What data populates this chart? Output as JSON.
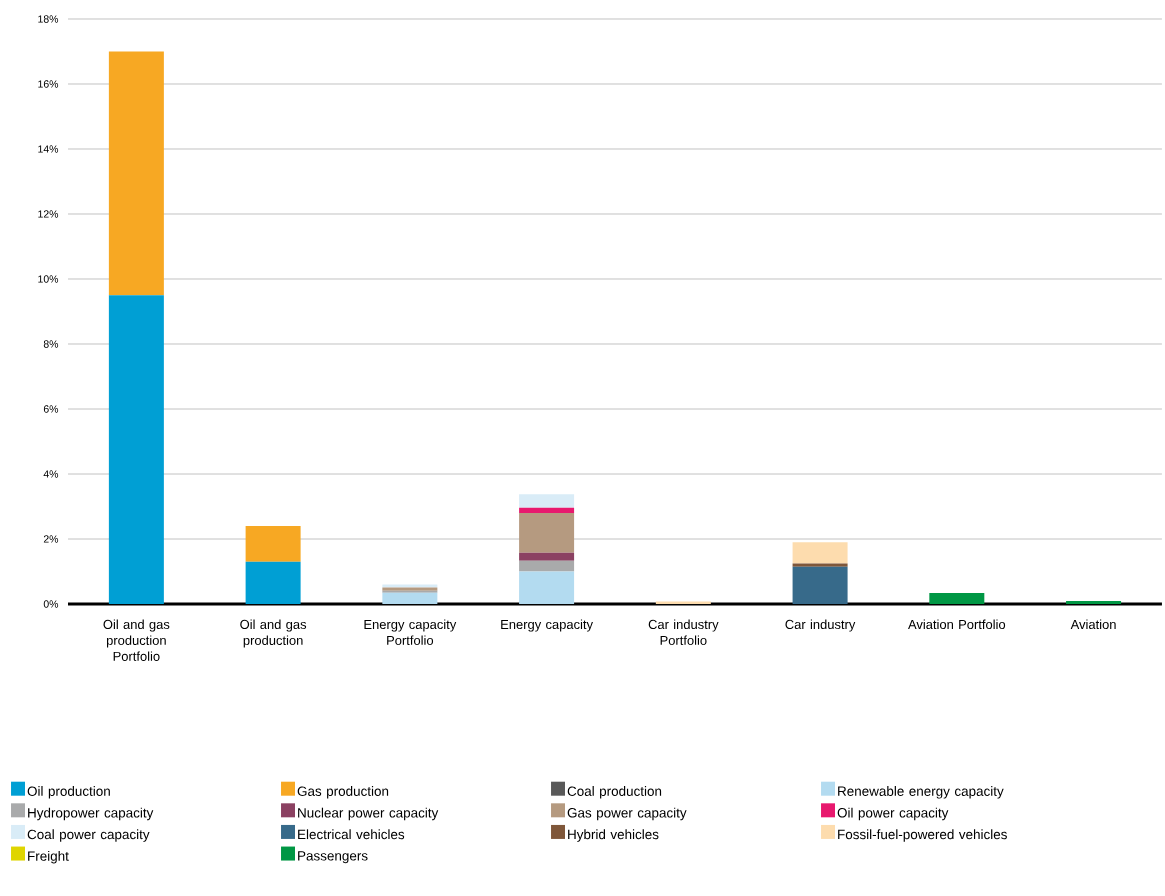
{
  "chart_data": {
    "type": "bar",
    "stacked": true,
    "categories": [
      "Oil and gas production Portfolio",
      "Oil and gas production",
      "Energy capacity Portfolio",
      "Energy capacity",
      "Car industry Portfolio",
      "Car industry",
      "Aviation Portfolio",
      "Aviation"
    ],
    "series": [
      {
        "name": "Oil production",
        "color": "#009fd4",
        "values": [
          9.5,
          1.3,
          null,
          null,
          null,
          null,
          null,
          null
        ]
      },
      {
        "name": "Gas production",
        "color": "#f7a823",
        "values": [
          7.5,
          1.1,
          null,
          null,
          null,
          null,
          null,
          null
        ]
      },
      {
        "name": "Coal production",
        "color": "#595959",
        "values": [
          null,
          null,
          null,
          null,
          null,
          null,
          null,
          null
        ]
      },
      {
        "name": "Renewable energy capacity",
        "color": "#b3dbf0",
        "values": [
          null,
          null,
          0.35,
          1.0,
          null,
          null,
          null,
          null
        ]
      },
      {
        "name": "Hydropower capacity",
        "color": "#a9aaab",
        "values": [
          null,
          null,
          0.06,
          0.33,
          null,
          null,
          null,
          null
        ]
      },
      {
        "name": "Nuclear power capacity",
        "color": "#8b4162",
        "values": [
          null,
          null,
          null,
          0.25,
          null,
          null,
          null,
          null
        ]
      },
      {
        "name": "Gas power capacity",
        "color": "#b59a80",
        "values": [
          null,
          null,
          0.1,
          1.22,
          null,
          null,
          null,
          null
        ]
      },
      {
        "name": "Oil power capacity",
        "color": "#e8196e",
        "values": [
          null,
          null,
          null,
          0.16,
          null,
          null,
          null,
          null
        ]
      },
      {
        "name": "Coal power capacity",
        "color": "#d9ecf7",
        "values": [
          null,
          null,
          0.09,
          0.42,
          null,
          null,
          null,
          null
        ]
      },
      {
        "name": "Electrical vehicles",
        "color": "#376a8a",
        "values": [
          null,
          null,
          null,
          null,
          null,
          1.15,
          null,
          null
        ]
      },
      {
        "name": "Hybrid vehicles",
        "color": "#7f573a",
        "values": [
          null,
          null,
          null,
          null,
          null,
          0.1,
          null,
          null
        ]
      },
      {
        "name": "Fossil-fuel-powered vehicles",
        "color": "#fddcae",
        "values": [
          null,
          null,
          null,
          null,
          0.08,
          0.65,
          null,
          null
        ]
      },
      {
        "name": "Freight",
        "color": "#dfd500",
        "values": [
          null,
          null,
          null,
          null,
          null,
          null,
          null,
          null
        ]
      },
      {
        "name": "Passengers",
        "color": "#009744",
        "values": [
          null,
          null,
          null,
          null,
          null,
          null,
          0.34,
          0.09
        ]
      }
    ],
    "ylim": [
      0,
      18
    ],
    "yticks": [
      {
        "value": 0,
        "label": "0%"
      },
      {
        "value": 2,
        "label": "2%"
      },
      {
        "value": 4,
        "label": "4%"
      },
      {
        "value": 6,
        "label": "6%"
      },
      {
        "value": 8,
        "label": "8%"
      },
      {
        "value": 10,
        "label": "10%"
      },
      {
        "value": 12,
        "label": "12%"
      },
      {
        "value": 14,
        "label": "14%"
      },
      {
        "value": 16,
        "label": "16%"
      },
      {
        "value": 18,
        "label": "18%"
      }
    ],
    "grid": "y",
    "legend": "bottom"
  }
}
